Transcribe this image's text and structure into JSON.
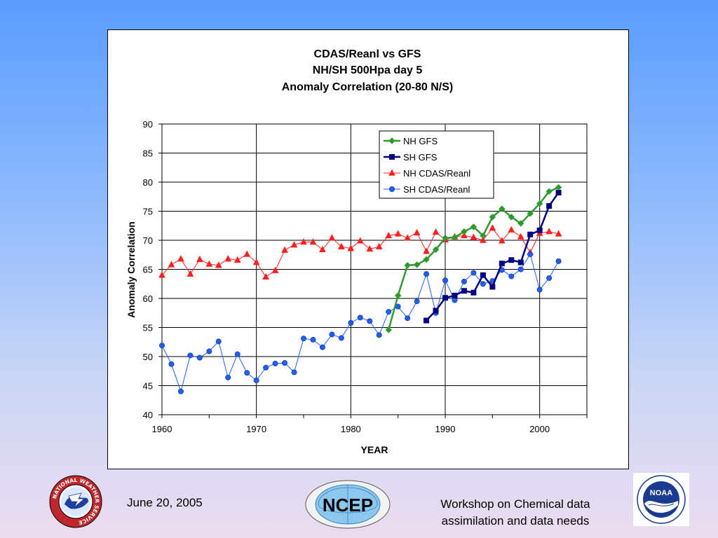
{
  "footer": {
    "date": "June 20, 2005",
    "event_line1": "Workshop on Chemical data",
    "event_line2": "assimilation and data needs",
    "ncep_text": "NCEP",
    "noaa_text": "NOAA",
    "nws_ring_text": "NATIONAL WEATHER SERVICE"
  },
  "colors": {
    "nh_gfs": "#2e9a2e",
    "sh_gfs": "#000080",
    "nh_cdas": "#ff2020",
    "sh_cdas": "#1f5fff"
  },
  "chart_data": {
    "type": "line",
    "title": [
      "CDAS/Reanl vs GFS",
      "NH/SH 500Hpa day 5",
      "Anomaly Correlation (20-80 N/S)"
    ],
    "xlabel": "YEAR",
    "ylabel": "Anomaly Correlation",
    "xlim": [
      1960,
      2005
    ],
    "ylim": [
      40,
      90
    ],
    "xticks": [
      1960,
      1970,
      1980,
      1990,
      2000
    ],
    "yticks": [
      40,
      45,
      50,
      55,
      60,
      65,
      70,
      75,
      80,
      85,
      90
    ],
    "grid": true,
    "legend_position": "top-right",
    "series": [
      {
        "name": "NH GFS",
        "color": "#2e9a2e",
        "marker": "diamond",
        "x": [
          1984,
          1985,
          1986,
          1987,
          1988,
          1989,
          1990,
          1991,
          1992,
          1993,
          1994,
          1995,
          1996,
          1997,
          1998,
          1999,
          2000,
          2001,
          2002
        ],
        "y": [
          54.6,
          60.5,
          65.7,
          65.8,
          66.7,
          68.4,
          70.4,
          70.5,
          71.5,
          72.3,
          70.8,
          74.0,
          75.4,
          74.0,
          72.9,
          74.6,
          76.3,
          78.4,
          79.1
        ]
      },
      {
        "name": "SH GFS",
        "color": "#000080",
        "marker": "square",
        "x": [
          1988,
          1989,
          1990,
          1991,
          1992,
          1993,
          1994,
          1995,
          1996,
          1997,
          1998,
          1999,
          2000,
          2001,
          2002
        ],
        "y": [
          56.2,
          57.9,
          60.1,
          60.5,
          61.3,
          61.0,
          64.0,
          62.0,
          66.0,
          66.6,
          66.2,
          71.0,
          71.7,
          75.9,
          78.2
        ]
      },
      {
        "name": "NH CDAS/Reanl",
        "color": "#ff2020",
        "marker": "triangle",
        "x": [
          1960,
          1961,
          1962,
          1963,
          1964,
          1965,
          1966,
          1967,
          1968,
          1969,
          1970,
          1971,
          1972,
          1973,
          1974,
          1975,
          1976,
          1977,
          1978,
          1979,
          1980,
          1981,
          1982,
          1983,
          1984,
          1985,
          1986,
          1987,
          1988,
          1989,
          1990,
          1991,
          1992,
          1993,
          1994,
          1995,
          1996,
          1997,
          1998,
          1999,
          2000,
          2001,
          2002
        ],
        "y": [
          64.0,
          65.8,
          66.8,
          64.2,
          66.7,
          65.9,
          65.7,
          66.8,
          66.6,
          67.6,
          66.2,
          63.7,
          64.8,
          68.3,
          69.2,
          69.7,
          69.7,
          68.4,
          70.4,
          68.9,
          68.6,
          69.9,
          68.5,
          68.9,
          70.8,
          71.1,
          70.4,
          71.3,
          68.1,
          71.4,
          70.1,
          70.6,
          70.8,
          70.5,
          70.0,
          72.1,
          69.9,
          71.8,
          70.6,
          67.9,
          71.2,
          71.5,
          71.1
        ]
      },
      {
        "name": "SH CDAS/Reanl",
        "color": "#1f5fff",
        "marker": "circle",
        "x": [
          1960,
          1961,
          1962,
          1963,
          1964,
          1965,
          1966,
          1967,
          1968,
          1969,
          1970,
          1971,
          1972,
          1973,
          1974,
          1975,
          1976,
          1977,
          1978,
          1979,
          1980,
          1981,
          1982,
          1983,
          1984,
          1985,
          1986,
          1987,
          1988,
          1989,
          1990,
          1991,
          1992,
          1993,
          1994,
          1995,
          1996,
          1997,
          1998,
          1999,
          2000,
          2001,
          2002
        ],
        "y": [
          51.9,
          48.7,
          44.0,
          50.2,
          49.8,
          50.9,
          52.6,
          46.4,
          50.4,
          47.2,
          45.9,
          48.1,
          48.8,
          48.9,
          47.3,
          53.1,
          52.9,
          51.6,
          53.8,
          53.2,
          55.8,
          56.7,
          56.1,
          53.7,
          57.7,
          58.6,
          56.6,
          59.5,
          64.2,
          57.5,
          63.1,
          59.7,
          62.9,
          64.4,
          62.5,
          63.0,
          64.9,
          63.8,
          65.0,
          67.6,
          61.5,
          63.5,
          66.4
        ]
      }
    ]
  }
}
